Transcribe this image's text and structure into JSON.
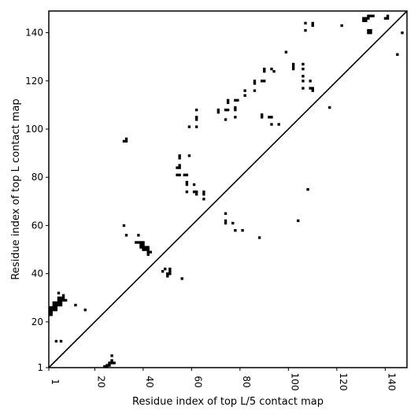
{
  "chart_data": {
    "type": "scatter",
    "title": "",
    "xlabel": "Residue index of top L/5 contact map",
    "ylabel": "Residue index of top L contact map",
    "xlim": [
      1,
      149
    ],
    "ylim": [
      1,
      149
    ],
    "x_ticks": [
      1,
      20,
      40,
      60,
      80,
      100,
      120,
      140
    ],
    "y_ticks": [
      1,
      20,
      40,
      60,
      80,
      100,
      120,
      140
    ],
    "grid": false,
    "legend": "none",
    "diagonal": true,
    "marker": "square",
    "color": "#000000",
    "upper_triangle_points": [
      [
        32,
        95
      ],
      [
        33,
        95
      ],
      [
        33,
        96
      ],
      [
        54,
        81
      ],
      [
        55,
        81
      ],
      [
        54,
        84
      ],
      [
        55,
        84
      ],
      [
        55,
        85
      ],
      [
        55,
        88
      ],
      [
        55,
        89
      ],
      [
        57,
        81
      ],
      [
        58,
        81
      ],
      [
        58,
        77
      ],
      [
        58,
        78
      ],
      [
        58,
        74
      ],
      [
        59,
        89
      ],
      [
        59,
        101
      ],
      [
        61,
        74
      ],
      [
        61,
        77
      ],
      [
        62,
        74
      ],
      [
        62,
        73
      ],
      [
        62,
        101
      ],
      [
        62,
        104
      ],
      [
        62,
        105
      ],
      [
        62,
        108
      ],
      [
        65,
        71
      ],
      [
        65,
        73
      ],
      [
        65,
        74
      ],
      [
        71,
        107
      ],
      [
        71,
        108
      ],
      [
        74,
        104
      ],
      [
        74,
        108
      ],
      [
        75,
        108
      ],
      [
        75,
        111
      ],
      [
        75,
        112
      ],
      [
        78,
        105
      ],
      [
        78,
        108
      ],
      [
        78,
        109
      ],
      [
        78,
        112
      ],
      [
        79,
        112
      ],
      [
        82,
        114
      ],
      [
        82,
        116
      ],
      [
        86,
        116
      ],
      [
        86,
        119
      ],
      [
        86,
        120
      ],
      [
        89,
        105
      ],
      [
        89,
        106
      ],
      [
        89,
        120
      ],
      [
        90,
        120
      ],
      [
        90,
        124
      ],
      [
        90,
        125
      ],
      [
        92,
        105
      ],
      [
        93,
        105
      ],
      [
        93,
        102
      ],
      [
        93,
        125
      ],
      [
        94,
        124
      ],
      [
        96,
        102
      ],
      [
        99,
        132
      ],
      [
        102,
        125
      ],
      [
        102,
        126
      ],
      [
        102,
        127
      ],
      [
        106,
        117
      ],
      [
        106,
        120
      ],
      [
        106,
        122
      ],
      [
        106,
        125
      ],
      [
        106,
        127
      ],
      [
        107,
        141
      ],
      [
        107,
        144
      ],
      [
        109,
        117
      ],
      [
        109,
        120
      ],
      [
        110,
        116
      ],
      [
        110,
        117
      ],
      [
        110,
        143
      ],
      [
        110,
        144
      ],
      [
        117,
        109
      ],
      [
        122,
        143
      ],
      [
        131,
        145
      ],
      [
        131,
        146
      ],
      [
        132,
        145
      ],
      [
        132,
        146
      ],
      [
        133,
        146
      ],
      [
        133,
        147
      ],
      [
        134,
        147
      ],
      [
        135,
        147
      ],
      [
        133,
        140
      ],
      [
        133,
        141
      ],
      [
        134,
        140
      ],
      [
        134,
        141
      ],
      [
        140,
        146
      ],
      [
        141,
        146
      ],
      [
        141,
        147
      ],
      [
        145,
        131
      ],
      [
        147,
        140
      ]
    ],
    "lower_triangle_points": [
      [
        1,
        23
      ],
      [
        1,
        24
      ],
      [
        1,
        25
      ],
      [
        1,
        26
      ],
      [
        2,
        23
      ],
      [
        2,
        24
      ],
      [
        2,
        25
      ],
      [
        2,
        26
      ],
      [
        3,
        25
      ],
      [
        3,
        26
      ],
      [
        3,
        27
      ],
      [
        3,
        28
      ],
      [
        4,
        25
      ],
      [
        4,
        26
      ],
      [
        4,
        27
      ],
      [
        4,
        28
      ],
      [
        5,
        27
      ],
      [
        5,
        28
      ],
      [
        5,
        29
      ],
      [
        5,
        30
      ],
      [
        6,
        27
      ],
      [
        6,
        28
      ],
      [
        6,
        29
      ],
      [
        6,
        30
      ],
      [
        7,
        29
      ],
      [
        7,
        30
      ],
      [
        7,
        31
      ],
      [
        8,
        29
      ],
      [
        5,
        32
      ],
      [
        4,
        12
      ],
      [
        6,
        12
      ],
      [
        12,
        27
      ],
      [
        16,
        25
      ],
      [
        24,
        1
      ],
      [
        25,
        1
      ],
      [
        25,
        2
      ],
      [
        26,
        2
      ],
      [
        26,
        3
      ],
      [
        27,
        3
      ],
      [
        28,
        3
      ],
      [
        27,
        4
      ],
      [
        27,
        6
      ],
      [
        32,
        60
      ],
      [
        33,
        56
      ],
      [
        37,
        53
      ],
      [
        38,
        53
      ],
      [
        38,
        56
      ],
      [
        39,
        51
      ],
      [
        39,
        52
      ],
      [
        39,
        53
      ],
      [
        40,
        50
      ],
      [
        40,
        51
      ],
      [
        40,
        52
      ],
      [
        40,
        53
      ],
      [
        41,
        50
      ],
      [
        41,
        51
      ],
      [
        42,
        48
      ],
      [
        42,
        49
      ],
      [
        42,
        50
      ],
      [
        42,
        51
      ],
      [
        43,
        49
      ],
      [
        48,
        41
      ],
      [
        49,
        42
      ],
      [
        50,
        39
      ],
      [
        50,
        40
      ],
      [
        51,
        40
      ],
      [
        51,
        41
      ],
      [
        51,
        42
      ],
      [
        56,
        38
      ],
      [
        74,
        61
      ],
      [
        74,
        62
      ],
      [
        74,
        65
      ],
      [
        77,
        61
      ],
      [
        78,
        58
      ],
      [
        81,
        58
      ],
      [
        88,
        55
      ],
      [
        104,
        62
      ],
      [
        108,
        75
      ]
    ]
  }
}
